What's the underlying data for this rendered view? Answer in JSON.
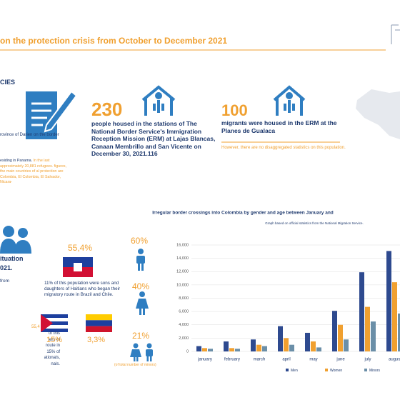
{
  "header": {
    "title": "on the protection crisis from October to December 2021",
    "section": "CIES"
  },
  "left_panel": {
    "caption": "rovince of Darien on the border",
    "paragraph": "esiding in Panama.",
    "paragraph_highlight": "In the last approximately 20,881 refugees. figures, the main countries of al protection are Colombia, El Colombia, El Salvador, Nicara-",
    "situation": [
      "ituation",
      "021."
    ],
    "from": "from",
    "percent": "55,4",
    "lines": [
      "of this",
      "ters of",
      "route in",
      "15% of",
      "ationals,",
      "nals."
    ]
  },
  "stat_230": {
    "value": "230",
    "text": "people housed in the stations of The National Border Service's Immigration Reception Mission (ERM) at Lajas Blancas, Canaan Membrillo and San Vicente on December 30, 2021.116"
  },
  "stat_100": {
    "value": "100",
    "text": "migrants were housed in the ERM at the Planes de Gualaca",
    "note": "However, there are no disaggregated statistics on this population."
  },
  "nationalities": {
    "haiti_percent": "55,4%",
    "haiti_text": "11% of this population were sons and daughters of Haitians who began their migratory route in Brazil and Chile.",
    "cuba_percent": "15%",
    "venezuela_percent": "3,3%"
  },
  "minors": {
    "men": "60%",
    "women": "40%",
    "children": "21%",
    "note": "(of total number of minors)"
  },
  "chart_data": {
    "type": "bar",
    "title": "Irregular border crossings into Colombia by gender and age between January and",
    "subtitle": "Graph based on official statistics from the National Migration Service.",
    "categories": [
      "january",
      "february",
      "march",
      "april",
      "may",
      "june",
      "july",
      "august"
    ],
    "series": [
      {
        "name": "Men",
        "color": "#2e4a8f",
        "values": [
          800,
          1500,
          1800,
          3800,
          2800,
          6100,
          11900,
          15100
        ]
      },
      {
        "name": "Women",
        "color": "#f0a030",
        "values": [
          500,
          500,
          1000,
          2000,
          1500,
          4000,
          6700,
          10400
        ]
      },
      {
        "name": "Minors",
        "color": "#6b8fa8",
        "values": [
          400,
          400,
          800,
          1000,
          600,
          1800,
          4500,
          5700
        ]
      }
    ],
    "ylim": [
      0,
      16000
    ],
    "yticks": [
      0,
      {
        "value": 2000,
        "label": "2,000"
      },
      {
        "value": 4000,
        "label": "4,000"
      },
      {
        "value": 6000,
        "label": "6,000"
      },
      {
        "value": 8000,
        "label": "8,000"
      },
      {
        "value": 10000,
        "label": "10,000"
      },
      {
        "value": 12000,
        "label": "12,000"
      },
      {
        "value": 14000,
        "label": "14,000"
      },
      {
        "value": 16000,
        "label": "16,000"
      }
    ],
    "grid": true,
    "legend": "bottom"
  }
}
